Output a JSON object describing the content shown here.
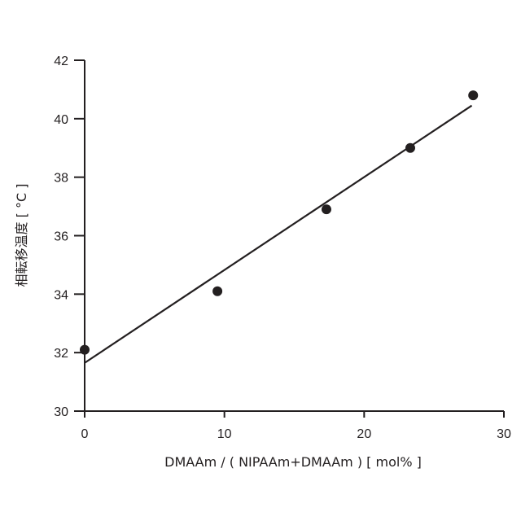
{
  "chart_data": {
    "type": "scatter",
    "title": "",
    "xlabel": "DMAAm / ( NIPAAm+DMAAm ) [ mol% ]",
    "ylabel": "相転移温度 [ °C ]",
    "xlim": [
      0,
      30
    ],
    "ylim": [
      30,
      42
    ],
    "xticks": [
      "0",
      "10",
      "20",
      "30"
    ],
    "yticks": [
      "30",
      "32",
      "34",
      "36",
      "38",
      "40",
      "42"
    ],
    "grid": false,
    "legend": "none",
    "series": [
      {
        "points": [
          {
            "x": 0,
            "y": 32.1
          },
          {
            "x": 9.5,
            "y": 34.1
          },
          {
            "x": 17.3,
            "y": 36.9
          },
          {
            "x": 23.3,
            "y": 39.0
          },
          {
            "x": 27.8,
            "y": 40.8
          }
        ]
      }
    ],
    "fit_line": {
      "x": [
        0,
        27.7
      ],
      "y": [
        31.65,
        40.45
      ]
    },
    "colors": {
      "marker": "#231f20",
      "axis": "#231f20"
    }
  }
}
